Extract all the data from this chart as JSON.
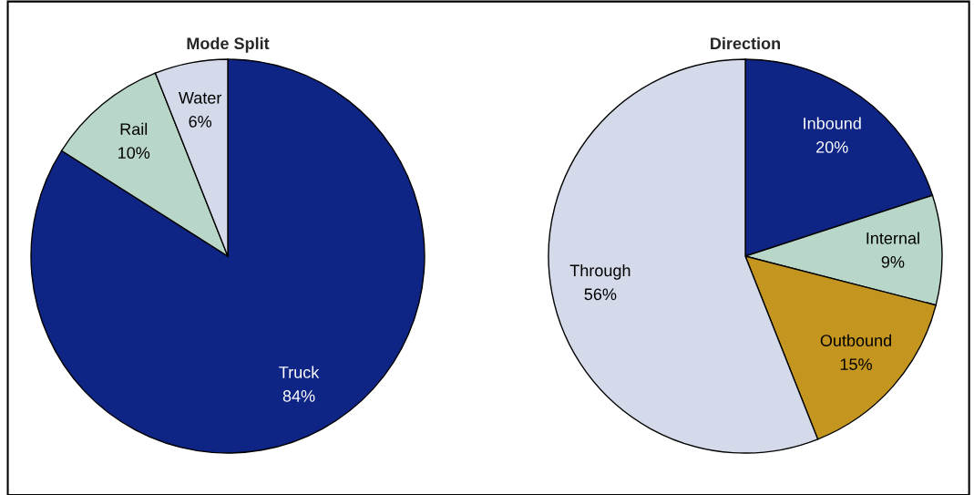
{
  "chart_data": [
    {
      "type": "pie",
      "title": "Mode Split",
      "categories": [
        "Truck",
        "Rail",
        "Water"
      ],
      "values": [
        84,
        10,
        6
      ],
      "colors": [
        "#0f2585",
        "#b9d7c9",
        "#d5daea"
      ],
      "value_labels": [
        "84%",
        "10%",
        "6%"
      ]
    },
    {
      "type": "pie",
      "title": "Direction",
      "categories": [
        "Inbound",
        "Internal",
        "Outbound",
        "Through"
      ],
      "values": [
        20,
        9,
        15,
        56
      ],
      "colors": [
        "#0f2585",
        "#b9d7c9",
        "#c4961f",
        "#d5daea"
      ],
      "value_labels": [
        "20%",
        "9%",
        "15%",
        "56%"
      ]
    }
  ]
}
